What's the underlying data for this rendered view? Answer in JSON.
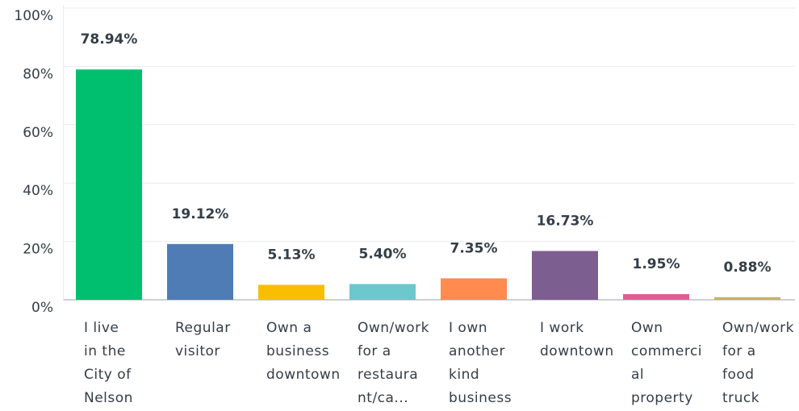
{
  "chart_data": {
    "type": "bar",
    "categories": [
      "I live\nin the\nCity of\nNelson",
      "Regular\nvisitor",
      "Own a\nbusiness\ndowntown",
      "Own/work\nfor a\nrestaura\nnt/ca...",
      "I own\nanother\nkind\nbusiness",
      "I work\ndowntown",
      "Own\ncommerci\nal\nproperty",
      "Own/work\nfor a\nfood\ntruck"
    ],
    "values": [
      78.94,
      19.12,
      5.13,
      5.4,
      7.35,
      16.73,
      1.95,
      0.88
    ],
    "value_labels": [
      "78.94%",
      "19.12%",
      "5.13%",
      "5.40%",
      "7.35%",
      "16.73%",
      "1.95%",
      "0.88%"
    ],
    "colors": [
      "#00bf6f",
      "#507cb6",
      "#f9be00",
      "#6bc8cd",
      "#ff8b4f",
      "#7d5e90",
      "#e35d94",
      "#c9b25d"
    ],
    "ylim": [
      0,
      100
    ],
    "yticks": [
      {
        "value": 0,
        "label": "0%"
      },
      {
        "value": 20,
        "label": "20%"
      },
      {
        "value": 40,
        "label": "40%"
      },
      {
        "value": 60,
        "label": "60%"
      },
      {
        "value": 80,
        "label": "80%"
      },
      {
        "value": 100,
        "label": "100%"
      }
    ],
    "grid": true
  }
}
